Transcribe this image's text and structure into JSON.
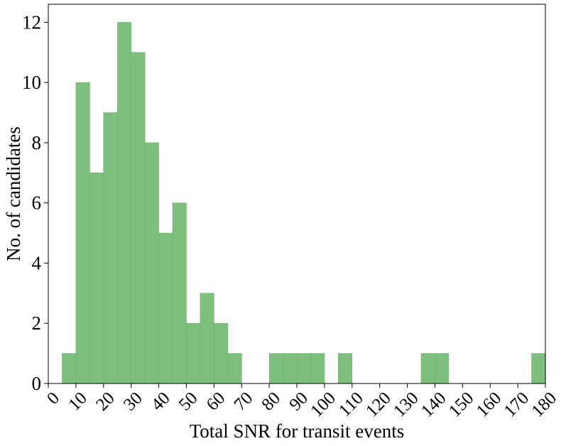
{
  "chart_data": {
    "type": "bar",
    "title": "",
    "xlabel": "Total SNR for transit events",
    "ylabel": "No. of candidates",
    "xlim": [
      0,
      180
    ],
    "ylim": [
      0,
      12.6
    ],
    "xticks": [
      0,
      10,
      20,
      30,
      40,
      50,
      60,
      70,
      80,
      90,
      100,
      110,
      120,
      130,
      140,
      150,
      160,
      170,
      180
    ],
    "yticks": [
      0,
      2,
      4,
      6,
      8,
      10,
      12
    ],
    "bin_width": 5,
    "bins": [
      {
        "x0": 5,
        "x1": 10,
        "count": 1
      },
      {
        "x0": 10,
        "x1": 15,
        "count": 10
      },
      {
        "x0": 15,
        "x1": 20,
        "count": 7
      },
      {
        "x0": 20,
        "x1": 25,
        "count": 9
      },
      {
        "x0": 25,
        "x1": 30,
        "count": 12
      },
      {
        "x0": 30,
        "x1": 35,
        "count": 11
      },
      {
        "x0": 35,
        "x1": 40,
        "count": 8
      },
      {
        "x0": 40,
        "x1": 45,
        "count": 5
      },
      {
        "x0": 45,
        "x1": 50,
        "count": 6
      },
      {
        "x0": 50,
        "x1": 55,
        "count": 2
      },
      {
        "x0": 55,
        "x1": 60,
        "count": 3
      },
      {
        "x0": 60,
        "x1": 65,
        "count": 2
      },
      {
        "x0": 65,
        "x1": 70,
        "count": 1
      },
      {
        "x0": 80,
        "x1": 85,
        "count": 1
      },
      {
        "x0": 85,
        "x1": 90,
        "count": 1
      },
      {
        "x0": 90,
        "x1": 95,
        "count": 1
      },
      {
        "x0": 95,
        "x1": 100,
        "count": 1
      },
      {
        "x0": 105,
        "x1": 110,
        "count": 1
      },
      {
        "x0": 135,
        "x1": 140,
        "count": 1
      },
      {
        "x0": 140,
        "x1": 145,
        "count": 1
      },
      {
        "x0": 175,
        "x1": 180,
        "count": 1
      }
    ],
    "bar_color": "#7dc07d",
    "bar_edge_color": "#6fb36f",
    "grid": false,
    "legend": "none"
  }
}
